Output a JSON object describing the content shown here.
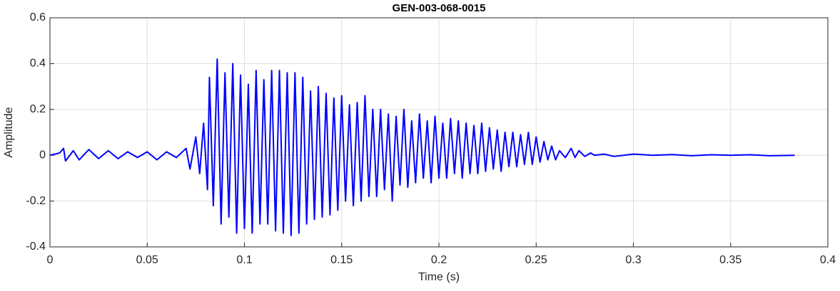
{
  "chart_data": {
    "type": "line",
    "title": "GEN-003-068-0015",
    "xlabel": "Time (s)",
    "ylabel": "Amplitude",
    "x": [
      0,
      0.005,
      0.007,
      0.008,
      0.012,
      0.015,
      0.02,
      0.025,
      0.03,
      0.035,
      0.04,
      0.045,
      0.05,
      0.055,
      0.06,
      0.065,
      0.07,
      0.072,
      0.075,
      0.077,
      0.079,
      0.081,
      0.082,
      0.084,
      0.086,
      0.088,
      0.09,
      0.092,
      0.094,
      0.096,
      0.098,
      0.1,
      0.102,
      0.104,
      0.106,
      0.108,
      0.11,
      0.112,
      0.114,
      0.116,
      0.118,
      0.12,
      0.122,
      0.124,
      0.126,
      0.128,
      0.13,
      0.132,
      0.134,
      0.136,
      0.138,
      0.14,
      0.142,
      0.144,
      0.146,
      0.148,
      0.15,
      0.152,
      0.154,
      0.156,
      0.158,
      0.16,
      0.162,
      0.164,
      0.166,
      0.168,
      0.17,
      0.172,
      0.174,
      0.176,
      0.178,
      0.18,
      0.182,
      0.184,
      0.186,
      0.188,
      0.19,
      0.192,
      0.194,
      0.196,
      0.198,
      0.2,
      0.202,
      0.204,
      0.206,
      0.208,
      0.21,
      0.212,
      0.214,
      0.216,
      0.218,
      0.22,
      0.222,
      0.224,
      0.226,
      0.228,
      0.23,
      0.232,
      0.234,
      0.236,
      0.238,
      0.24,
      0.242,
      0.244,
      0.246,
      0.248,
      0.25,
      0.252,
      0.254,
      0.256,
      0.258,
      0.26,
      0.262,
      0.265,
      0.268,
      0.27,
      0.272,
      0.275,
      0.278,
      0.28,
      0.285,
      0.29,
      0.3,
      0.31,
      0.32,
      0.33,
      0.34,
      0.35,
      0.36,
      0.37,
      0.383
    ],
    "values": [
      0,
      0.01,
      0.03,
      -0.025,
      0.02,
      -0.02,
      0.025,
      -0.015,
      0.02,
      -0.015,
      0.015,
      -0.01,
      0.015,
      -0.02,
      0.015,
      -0.01,
      0.03,
      -0.06,
      0.08,
      -0.08,
      0.14,
      -0.15,
      0.34,
      -0.22,
      0.42,
      -0.3,
      0.36,
      -0.27,
      0.4,
      -0.34,
      0.35,
      -0.32,
      0.31,
      -0.34,
      0.37,
      -0.3,
      0.33,
      -0.3,
      0.37,
      -0.33,
      0.37,
      -0.34,
      0.36,
      -0.35,
      0.36,
      -0.34,
      0.34,
      -0.3,
      0.28,
      -0.28,
      0.3,
      -0.27,
      0.27,
      -0.26,
      0.25,
      -0.24,
      0.26,
      -0.2,
      0.22,
      -0.22,
      0.23,
      -0.2,
      0.26,
      -0.18,
      0.2,
      -0.18,
      0.2,
      -0.15,
      0.18,
      -0.2,
      0.17,
      -0.13,
      0.2,
      -0.14,
      0.15,
      -0.12,
      0.18,
      -0.1,
      0.15,
      -0.12,
      0.17,
      -0.1,
      0.14,
      -0.1,
      0.16,
      -0.08,
      0.15,
      -0.1,
      0.14,
      -0.08,
      0.13,
      -0.08,
      0.14,
      -0.07,
      0.12,
      -0.06,
      0.11,
      -0.07,
      0.1,
      -0.05,
      0.1,
      -0.05,
      0.09,
      -0.04,
      0.1,
      -0.04,
      0.08,
      -0.03,
      0.06,
      -0.02,
      0.04,
      -0.02,
      0.02,
      -0.01,
      0.03,
      -0.01,
      0.02,
      -0.005,
      0.01,
      0,
      0.005,
      -0.005,
      0.005,
      0,
      0.003,
      -0.002,
      0.002,
      0,
      0.002,
      -0.002,
      0
    ],
    "color": "#0000ff",
    "xlim": [
      0,
      0.4
    ],
    "ylim": [
      -0.4,
      0.6
    ],
    "xticks": [
      0,
      0.05,
      0.1,
      0.15,
      0.2,
      0.25,
      0.3,
      0.35,
      0.4
    ],
    "yticks": [
      -0.4,
      -0.2,
      0,
      0.2,
      0.4,
      0.6
    ],
    "grid": true
  }
}
